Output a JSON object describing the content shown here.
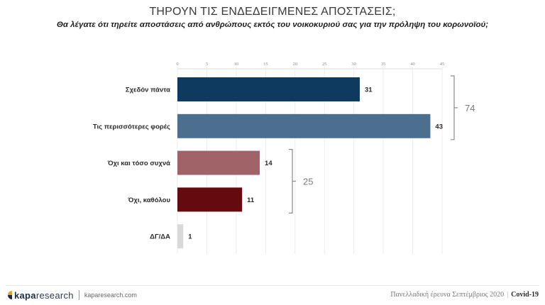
{
  "header": {
    "title": "ΤΗΡΟΥΝ ΤΙΣ ΕΝΔΕΔΕΙΓΜΕΝΕΣ ΑΠΟΣΤΑΣΕΙΣ;",
    "subtitle": "Θα λέγατε ότι τηρείτε αποστάσεις από ανθρώπους εκτός του νοικοκυριού σας για την πρόληψη του κορωνοϊού;"
  },
  "chart_data": {
    "type": "bar",
    "orientation": "horizontal",
    "title": "ΤΗΡΟΥΝ ΤΙΣ ΕΝΔΕΔΕΙΓΜΕΝΕΣ ΑΠΟΣΤΑΣΕΙΣ;",
    "xlabel": "",
    "ylabel": "",
    "xlim": [
      0,
      45
    ],
    "xticks": [
      "0",
      "5",
      "10",
      "15",
      "20",
      "25",
      "30",
      "35",
      "40",
      "45"
    ],
    "grid": true,
    "categories": [
      "Σχεδόν πάντα",
      "Τις περισσότερες φορές",
      "Όχι και τόσο συχνά",
      "Όχι, καθόλου",
      "ΔΓ/ΔΑ"
    ],
    "values": [
      31,
      43,
      14,
      11,
      1
    ],
    "data_labels": [
      "31",
      "43",
      "14",
      "11",
      "1"
    ],
    "colors": [
      "#0f3a5f",
      "#4c6e8f",
      "#a06468",
      "#650a0e",
      "#d9d9d9"
    ],
    "groups": [
      {
        "label": "74",
        "from": 0,
        "to": 1
      },
      {
        "label": "25",
        "from": 2,
        "to": 3
      }
    ]
  },
  "footer": {
    "logo_bold": "kapa",
    "logo_light": "research",
    "url": "kaparesearch.com",
    "survey": "Πανελλαδική έρευνα Σεπτέμβριος 2020",
    "separator": "|",
    "topic": "Covid-19"
  }
}
